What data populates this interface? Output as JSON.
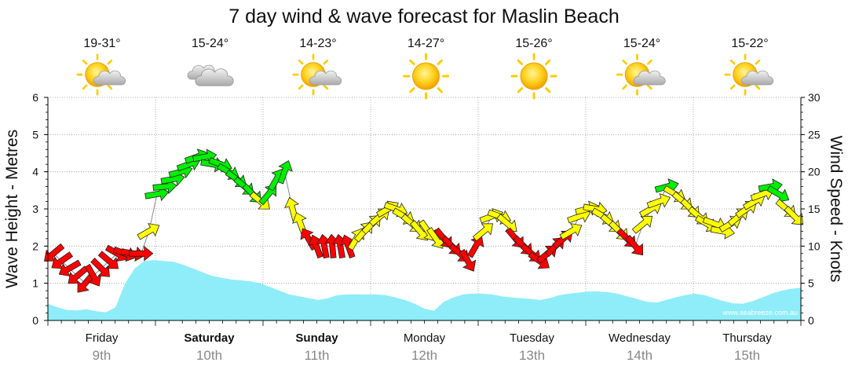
{
  "chart_data": {
    "type": "line",
    "title": "7 day wind & wave forecast for Maslin Beach",
    "ylabel_left": "Wave Height - Metres",
    "ylabel_right": "Wind Speed - Knots",
    "ylim_left": [
      0,
      6
    ],
    "ylim_right": [
      0,
      30
    ],
    "yticks_left": [
      "0",
      "1",
      "2",
      "3",
      "4",
      "5",
      "6"
    ],
    "yticks_right": [
      "0",
      "5",
      "10",
      "15",
      "20",
      "25",
      "30"
    ],
    "watermark": "www.seabreeze.com.au",
    "days": [
      {
        "day": "Friday",
        "date": "9th",
        "bold": false,
        "temp": "19-31°",
        "weather": "partly-cloudy-icon"
      },
      {
        "day": "Saturday",
        "date": "10th",
        "bold": true,
        "temp": "15-24°",
        "weather": "cloudy-icon"
      },
      {
        "day": "Sunday",
        "date": "11th",
        "bold": true,
        "temp": "14-23°",
        "weather": "partly-cloudy-icon"
      },
      {
        "day": "Monday",
        "date": "12th",
        "bold": false,
        "temp": "14-27°",
        "weather": "sunny-icon"
      },
      {
        "day": "Tuesday",
        "date": "13th",
        "bold": false,
        "temp": "15-26°",
        "weather": "sunny-icon"
      },
      {
        "day": "Wednesday",
        "date": "14th",
        "bold": false,
        "temp": "15-24°",
        "weather": "partly-cloudy-icon"
      },
      {
        "day": "Thursday",
        "date": "15th",
        "bold": false,
        "temp": "15-22°",
        "weather": "partly-cloudy-icon"
      }
    ],
    "wave_height_m": [
      0.45,
      0.35,
      0.28,
      0.27,
      0.3,
      0.25,
      0.22,
      0.35,
      1.0,
      1.4,
      1.6,
      1.62,
      1.6,
      1.58,
      1.5,
      1.4,
      1.3,
      1.2,
      1.15,
      1.1,
      1.08,
      1.05,
      1.0,
      0.9,
      0.8,
      0.7,
      0.65,
      0.6,
      0.55,
      0.6,
      0.68,
      0.7,
      0.7,
      0.7,
      0.7,
      0.68,
      0.62,
      0.55,
      0.45,
      0.32,
      0.26,
      0.5,
      0.62,
      0.7,
      0.72,
      0.72,
      0.7,
      0.65,
      0.62,
      0.6,
      0.58,
      0.55,
      0.6,
      0.68,
      0.72,
      0.75,
      0.78,
      0.78,
      0.76,
      0.72,
      0.65,
      0.58,
      0.5,
      0.48,
      0.55,
      0.62,
      0.68,
      0.72,
      0.68,
      0.6,
      0.52,
      0.46,
      0.45,
      0.52,
      0.62,
      0.72,
      0.8,
      0.85,
      0.88
    ],
    "wind_colors": {
      "light": "#ffff00",
      "moderate": "#00ee00",
      "offshore": "#ff0000"
    },
    "wind": [
      {
        "knots": 9,
        "dir": 140,
        "c": "offshore"
      },
      {
        "knots": 8,
        "dir": 145,
        "c": "offshore"
      },
      {
        "knots": 7,
        "dir": 150,
        "c": "offshore"
      },
      {
        "knots": 6,
        "dir": 140,
        "c": "offshore"
      },
      {
        "knots": 5,
        "dir": 130,
        "c": "offshore"
      },
      {
        "knots": 6,
        "dir": 60,
        "c": "offshore"
      },
      {
        "knots": 7,
        "dir": 45,
        "c": "offshore"
      },
      {
        "knots": 8,
        "dir": 40,
        "c": "offshore"
      },
      {
        "knots": 9,
        "dir": 30,
        "c": "offshore"
      },
      {
        "knots": 9,
        "dir": 20,
        "c": "offshore"
      },
      {
        "knots": 9,
        "dir": 10,
        "c": "offshore"
      },
      {
        "knots": 9,
        "dir": 0,
        "c": "offshore"
      },
      {
        "knots": 12,
        "dir": -30,
        "c": "light"
      },
      {
        "knots": 17,
        "dir": -10,
        "c": "moderate"
      },
      {
        "knots": 18,
        "dir": -5,
        "c": "moderate"
      },
      {
        "knots": 19,
        "dir": -10,
        "c": "moderate"
      },
      {
        "knots": 20,
        "dir": -15,
        "c": "moderate"
      },
      {
        "knots": 21,
        "dir": -20,
        "c": "moderate"
      },
      {
        "knots": 22,
        "dir": -20,
        "c": "moderate"
      },
      {
        "knots": 22,
        "dir": -10,
        "c": "moderate"
      },
      {
        "knots": 21,
        "dir": 10,
        "c": "moderate"
      },
      {
        "knots": 21,
        "dir": 20,
        "c": "moderate"
      },
      {
        "knots": 20,
        "dir": 30,
        "c": "moderate"
      },
      {
        "knots": 19,
        "dir": 35,
        "c": "moderate"
      },
      {
        "knots": 18,
        "dir": 40,
        "c": "moderate"
      },
      {
        "knots": 17,
        "dir": 45,
        "c": "moderate"
      },
      {
        "knots": 16,
        "dir": 40,
        "c": "light"
      },
      {
        "knots": 17,
        "dir": -50,
        "c": "moderate"
      },
      {
        "knots": 19,
        "dir": -60,
        "c": "moderate"
      },
      {
        "knots": 20,
        "dir": -70,
        "c": "moderate"
      },
      {
        "knots": 15,
        "dir": -105,
        "c": "light"
      },
      {
        "knots": 13,
        "dir": -110,
        "c": "light"
      },
      {
        "knots": 11,
        "dir": -120,
        "c": "offshore"
      },
      {
        "knots": 10,
        "dir": -110,
        "c": "offshore"
      },
      {
        "knots": 10,
        "dir": -100,
        "c": "offshore"
      },
      {
        "knots": 10,
        "dir": -95,
        "c": "offshore"
      },
      {
        "knots": 10,
        "dir": -100,
        "c": "offshore"
      },
      {
        "knots": 10,
        "dir": -110,
        "c": "offshore"
      },
      {
        "knots": 11,
        "dir": -60,
        "c": "light"
      },
      {
        "knots": 12,
        "dir": -50,
        "c": "light"
      },
      {
        "knots": 13,
        "dir": -45,
        "c": "light"
      },
      {
        "knots": 14,
        "dir": -40,
        "c": "light"
      },
      {
        "knots": 15,
        "dir": -30,
        "c": "light"
      },
      {
        "knots": 15,
        "dir": 20,
        "c": "light"
      },
      {
        "knots": 14,
        "dir": 30,
        "c": "light"
      },
      {
        "knots": 13,
        "dir": 40,
        "c": "light"
      },
      {
        "knots": 12,
        "dir": 50,
        "c": "light"
      },
      {
        "knots": 12,
        "dir": 55,
        "c": "light"
      },
      {
        "knots": 11,
        "dir": 55,
        "c": "light"
      },
      {
        "knots": 11,
        "dir": 50,
        "c": "offshore"
      },
      {
        "knots": 10,
        "dir": 45,
        "c": "offshore"
      },
      {
        "knots": 9,
        "dir": 40,
        "c": "offshore"
      },
      {
        "knots": 8,
        "dir": 60,
        "c": "offshore"
      },
      {
        "knots": 10,
        "dir": -60,
        "c": "offshore"
      },
      {
        "knots": 12,
        "dir": -40,
        "c": "light"
      },
      {
        "knots": 14,
        "dir": -20,
        "c": "light"
      },
      {
        "knots": 14,
        "dir": 20,
        "c": "light"
      },
      {
        "knots": 13,
        "dir": 40,
        "c": "light"
      },
      {
        "knots": 11,
        "dir": 50,
        "c": "offshore"
      },
      {
        "knots": 10,
        "dir": 45,
        "c": "offshore"
      },
      {
        "knots": 9,
        "dir": 40,
        "c": "offshore"
      },
      {
        "knots": 8,
        "dir": 35,
        "c": "offshore"
      },
      {
        "knots": 9,
        "dir": -40,
        "c": "offshore"
      },
      {
        "knots": 10,
        "dir": -45,
        "c": "offshore"
      },
      {
        "knots": 11,
        "dir": -40,
        "c": "offshore"
      },
      {
        "knots": 12,
        "dir": -30,
        "c": "light"
      },
      {
        "knots": 14,
        "dir": -20,
        "c": "light"
      },
      {
        "knots": 15,
        "dir": -15,
        "c": "light"
      },
      {
        "knots": 15,
        "dir": 10,
        "c": "light"
      },
      {
        "knots": 14,
        "dir": 30,
        "c": "light"
      },
      {
        "knots": 13,
        "dir": 40,
        "c": "light"
      },
      {
        "knots": 12,
        "dir": 45,
        "c": "light"
      },
      {
        "knots": 11,
        "dir": 45,
        "c": "offshore"
      },
      {
        "knots": 10,
        "dir": 50,
        "c": "offshore"
      },
      {
        "knots": 13,
        "dir": -40,
        "c": "light"
      },
      {
        "knots": 15,
        "dir": -30,
        "c": "light"
      },
      {
        "knots": 16,
        "dir": -20,
        "c": "light"
      },
      {
        "knots": 18,
        "dir": -15,
        "c": "moderate"
      },
      {
        "knots": 17,
        "dir": 30,
        "c": "light"
      },
      {
        "knots": 16,
        "dir": 40,
        "c": "light"
      },
      {
        "knots": 15,
        "dir": 45,
        "c": "light"
      },
      {
        "knots": 14,
        "dir": 40,
        "c": "light"
      },
      {
        "knots": 13,
        "dir": 30,
        "c": "light"
      },
      {
        "knots": 13,
        "dir": 20,
        "c": "light"
      },
      {
        "knots": 12,
        "dir": 10,
        "c": "light"
      },
      {
        "knots": 13,
        "dir": -30,
        "c": "light"
      },
      {
        "knots": 14,
        "dir": -40,
        "c": "light"
      },
      {
        "knots": 15,
        "dir": -35,
        "c": "light"
      },
      {
        "knots": 16,
        "dir": -30,
        "c": "light"
      },
      {
        "knots": 17,
        "dir": -20,
        "c": "light"
      },
      {
        "knots": 18,
        "dir": -10,
        "c": "moderate"
      },
      {
        "knots": 17,
        "dir": 30,
        "c": "moderate"
      },
      {
        "knots": 15,
        "dir": 40,
        "c": "light"
      },
      {
        "knots": 14,
        "dir": 45,
        "c": "light"
      }
    ]
  }
}
